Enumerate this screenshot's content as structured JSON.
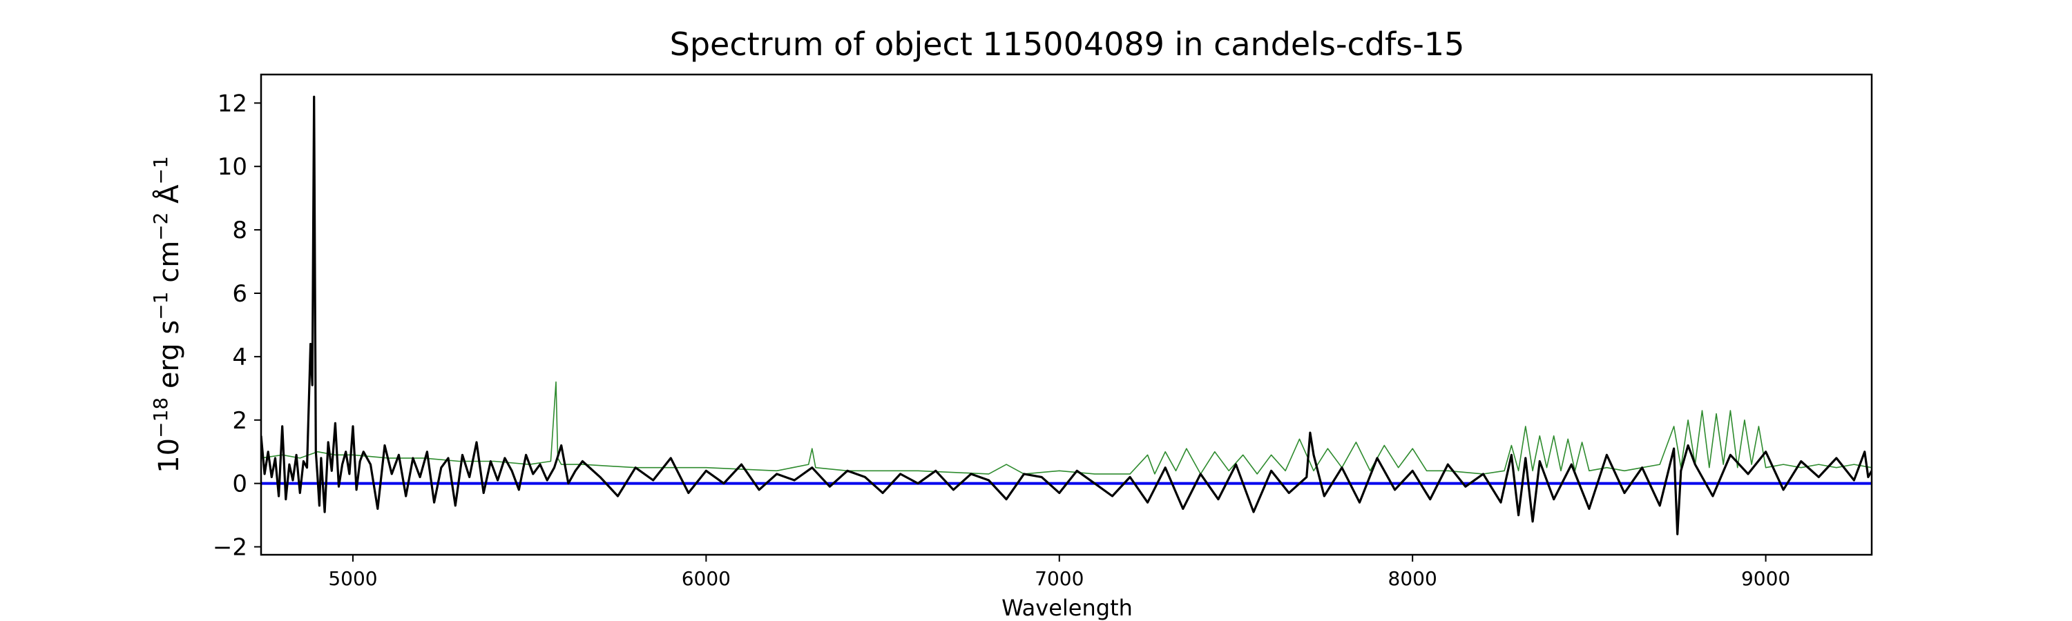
{
  "chart_data": {
    "type": "line",
    "title": "Spectrum of object 115004089 in candels-cdfs-15",
    "xlabel": "Wavelength",
    "ylabel": {
      "prefix": "10",
      "exp1": "−18",
      "mid1": " erg s",
      "exp2": "−1",
      "mid2": " cm",
      "exp3": "−2",
      "mid3": " Å",
      "exp4": "−1"
    },
    "xlim": [
      4740,
      9300
    ],
    "ylim": [
      -2.25,
      12.9
    ],
    "xticks": [
      5000,
      6000,
      7000,
      8000,
      9000
    ],
    "yticks": [
      -2,
      0,
      2,
      4,
      6,
      8,
      10,
      12
    ],
    "ytick_labels": [
      "−2",
      "0",
      "2",
      "4",
      "6",
      "8",
      "10",
      "12"
    ],
    "grid": false,
    "colors": {
      "flux": "#000000",
      "error": "#2e8b2e",
      "zero": "#0000ee"
    },
    "series": [
      {
        "role": "flux",
        "x": [
          4740,
          4750,
          4760,
          4770,
          4780,
          4790,
          4800,
          4810,
          4820,
          4830,
          4840,
          4850,
          4860,
          4870,
          4880,
          4885,
          4890,
          4895,
          4900,
          4905,
          4910,
          4920,
          4930,
          4940,
          4950,
          4960,
          4970,
          4980,
          4990,
          5000,
          5010,
          5020,
          5030,
          5050,
          5070,
          5090,
          5110,
          5130,
          5150,
          5170,
          5190,
          5210,
          5230,
          5250,
          5270,
          5290,
          5310,
          5330,
          5350,
          5370,
          5390,
          5410,
          5430,
          5450,
          5470,
          5490,
          5510,
          5530,
          5550,
          5570,
          5590,
          5610,
          5630,
          5650,
          5700,
          5750,
          5800,
          5850,
          5900,
          5950,
          6000,
          6050,
          6100,
          6150,
          6200,
          6250,
          6300,
          6350,
          6400,
          6450,
          6500,
          6550,
          6600,
          6650,
          6700,
          6750,
          6800,
          6850,
          6900,
          6950,
          7000,
          7050,
          7100,
          7150,
          7200,
          7250,
          7300,
          7350,
          7400,
          7450,
          7500,
          7550,
          7600,
          7650,
          7700,
          7710,
          7720,
          7750,
          7800,
          7850,
          7900,
          7950,
          8000,
          8050,
          8100,
          8150,
          8200,
          8250,
          8280,
          8300,
          8320,
          8340,
          8360,
          8400,
          8450,
          8500,
          8550,
          8600,
          8650,
          8700,
          8740,
          8750,
          8760,
          8780,
          8800,
          8850,
          8900,
          8950,
          9000,
          9050,
          9100,
          9150,
          9200,
          9250,
          9280,
          9290,
          9300
        ],
        "y": [
          1.5,
          0.3,
          1.0,
          0.2,
          0.8,
          -0.4,
          1.8,
          -0.5,
          0.6,
          0.1,
          0.9,
          -0.3,
          0.7,
          0.5,
          4.4,
          3.1,
          12.2,
          1.0,
          0.2,
          -0.7,
          0.8,
          -0.9,
          1.3,
          0.4,
          1.9,
          -0.1,
          0.6,
          1.0,
          0.3,
          1.8,
          -0.2,
          0.7,
          1.0,
          0.6,
          -0.8,
          1.2,
          0.3,
          0.9,
          -0.4,
          0.8,
          0.2,
          1.0,
          -0.6,
          0.5,
          0.8,
          -0.7,
          0.9,
          0.2,
          1.3,
          -0.3,
          0.7,
          0.1,
          0.8,
          0.4,
          -0.2,
          0.9,
          0.3,
          0.6,
          0.1,
          0.5,
          1.2,
          0.0,
          0.4,
          0.7,
          0.2,
          -0.4,
          0.5,
          0.1,
          0.8,
          -0.3,
          0.4,
          0.0,
          0.6,
          -0.2,
          0.3,
          0.1,
          0.5,
          -0.1,
          0.4,
          0.2,
          -0.3,
          0.3,
          0.0,
          0.4,
          -0.2,
          0.3,
          0.1,
          -0.5,
          0.3,
          0.2,
          -0.3,
          0.4,
          0.0,
          -0.4,
          0.2,
          -0.6,
          0.5,
          -0.8,
          0.3,
          -0.5,
          0.6,
          -0.9,
          0.4,
          -0.3,
          0.2,
          1.6,
          0.9,
          -0.4,
          0.5,
          -0.6,
          0.8,
          -0.2,
          0.4,
          -0.5,
          0.6,
          -0.1,
          0.3,
          -0.6,
          0.9,
          -1.0,
          0.8,
          -1.2,
          0.7,
          -0.5,
          0.6,
          -0.8,
          0.9,
          -0.3,
          0.5,
          -0.7,
          1.1,
          -1.6,
          0.4,
          1.2,
          0.6,
          -0.4,
          0.9,
          0.3,
          1.0,
          -0.2,
          0.7,
          0.2,
          0.8,
          0.1,
          1.0,
          0.2,
          0.4
        ]
      },
      {
        "role": "error",
        "x": [
          4740,
          4800,
          4850,
          4900,
          4950,
          5000,
          5100,
          5200,
          5300,
          5400,
          5500,
          5560,
          5575,
          5580,
          5590,
          5650,
          5800,
          6000,
          6200,
          6290,
          6300,
          6310,
          6400,
          6600,
          6800,
          6850,
          6900,
          7000,
          7100,
          7200,
          7250,
          7270,
          7300,
          7330,
          7360,
          7400,
          7440,
          7480,
          7520,
          7560,
          7600,
          7640,
          7680,
          7720,
          7760,
          7800,
          7840,
          7880,
          7920,
          7960,
          8000,
          8040,
          8100,
          8200,
          8260,
          8280,
          8300,
          8320,
          8340,
          8360,
          8380,
          8400,
          8420,
          8440,
          8460,
          8480,
          8500,
          8550,
          8600,
          8650,
          8700,
          8740,
          8760,
          8780,
          8800,
          8820,
          8840,
          8860,
          8880,
          8900,
          8920,
          8940,
          8960,
          8980,
          9000,
          9050,
          9100,
          9150,
          9200,
          9250,
          9300
        ],
        "y": [
          0.8,
          0.9,
          0.8,
          1.0,
          0.9,
          0.9,
          0.8,
          0.8,
          0.7,
          0.7,
          0.6,
          0.7,
          3.2,
          0.8,
          0.6,
          0.6,
          0.5,
          0.5,
          0.4,
          0.6,
          1.1,
          0.5,
          0.4,
          0.4,
          0.3,
          0.6,
          0.3,
          0.4,
          0.3,
          0.3,
          0.9,
          0.3,
          1.0,
          0.4,
          1.1,
          0.3,
          1.0,
          0.4,
          0.9,
          0.3,
          0.9,
          0.4,
          1.4,
          0.4,
          1.1,
          0.5,
          1.3,
          0.4,
          1.2,
          0.5,
          1.1,
          0.4,
          0.4,
          0.3,
          0.4,
          1.2,
          0.4,
          1.8,
          0.4,
          1.5,
          0.5,
          1.5,
          0.4,
          1.4,
          0.4,
          1.3,
          0.4,
          0.5,
          0.4,
          0.5,
          0.6,
          1.8,
          0.5,
          2.0,
          0.6,
          2.3,
          0.5,
          2.2,
          0.6,
          2.3,
          0.5,
          2.0,
          0.6,
          1.8,
          0.5,
          0.6,
          0.5,
          0.6,
          0.5,
          0.6,
          0.5
        ]
      },
      {
        "role": "zero",
        "x": [
          4740,
          9300
        ],
        "y": [
          0,
          0
        ]
      }
    ]
  }
}
